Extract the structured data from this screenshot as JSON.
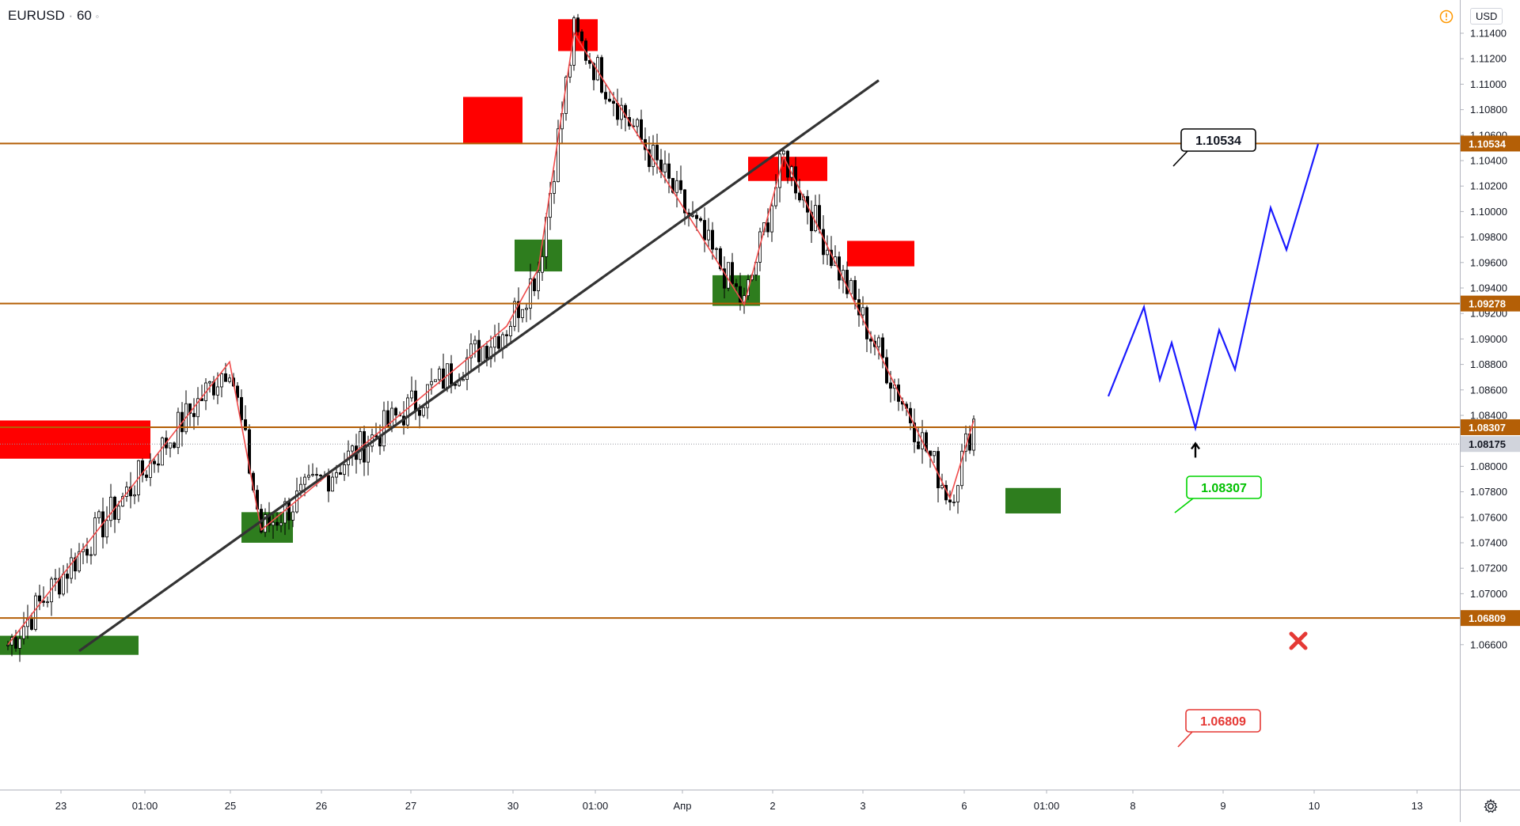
{
  "header": {
    "symbol": "EURUSD",
    "interval": "60",
    "separator": "·"
  },
  "price_axis": {
    "currency": "USD",
    "ticks": [
      "1.11400",
      "1.11200",
      "1.11000",
      "1.10800",
      "1.10600",
      "1.10400",
      "1.10200",
      "1.10000",
      "1.09800",
      "1.09600",
      "1.09400",
      "1.09200",
      "1.09000",
      "1.08800",
      "1.08600",
      "1.08400",
      "1.08200",
      "1.08000",
      "1.07800",
      "1.07600",
      "1.07400",
      "1.07200",
      "1.07000",
      "1.06800",
      "1.06600"
    ],
    "tick_values": [
      1.114,
      1.112,
      1.11,
      1.108,
      1.106,
      1.104,
      1.102,
      1.1,
      1.098,
      1.096,
      1.094,
      1.092,
      1.09,
      1.088,
      1.086,
      1.084,
      1.082,
      1.08,
      1.078,
      1.076,
      1.074,
      1.072,
      1.07,
      1.068,
      1.066
    ],
    "level_labels": [
      {
        "text": "1.10534",
        "value": 1.10534,
        "color": "#b45f06"
      },
      {
        "text": "1.09278",
        "value": 1.09278,
        "color": "#b45f06"
      },
      {
        "text": "1.08307",
        "value": 1.08307,
        "color": "#b45f06"
      },
      {
        "text": "1.08175",
        "value": 1.08175,
        "color": "#d1d4dc"
      },
      {
        "text": "1.06809",
        "value": 1.06809,
        "color": "#b45f06"
      }
    ]
  },
  "time_axis": {
    "labels": [
      {
        "text": "23",
        "x": 0
      },
      {
        "text": "01:00",
        "x": 1
      },
      {
        "text": "25",
        "x": 2
      },
      {
        "text": "26",
        "x": 3
      },
      {
        "text": "27",
        "x": 4
      },
      {
        "text": "30",
        "x": 5
      },
      {
        "text": "01:00",
        "x": 6
      },
      {
        "text": "Апр",
        "x": 7
      },
      {
        "text": "2",
        "x": 8
      },
      {
        "text": "3",
        "x": 9
      },
      {
        "text": "6",
        "x": 10
      },
      {
        "text": "01:00",
        "x": 11
      },
      {
        "text": "8",
        "x": 12
      },
      {
        "text": "9",
        "x": 13
      },
      {
        "text": "10",
        "x": 14
      },
      {
        "text": "13",
        "x": 15
      }
    ]
  },
  "callouts": [
    {
      "text": "1.10534",
      "border": "#000000",
      "color": "#131722"
    },
    {
      "text": "1.08307",
      "border": "#00d400",
      "color": "#00c000"
    },
    {
      "text": "1.06809",
      "border": "#e53935",
      "color": "#e53935"
    }
  ],
  "colors": {
    "level": "#b45f06",
    "supply": "#ff0000",
    "demand": "#2e7d1e",
    "zigzag": "#f04b4b",
    "trend": "#333333",
    "projection": "#1a1aff",
    "candle": "#000000"
  },
  "chart_data": {
    "type": "candlestick",
    "symbol": "EURUSD",
    "interval": "60",
    "ylim": [
      1.0653,
      1.1155
    ],
    "horizontal_levels": [
      1.10534,
      1.09278,
      1.08307,
      1.06809
    ],
    "last_price": 1.08175,
    "zigzag_path": [
      {
        "bar": 0,
        "price": 1.066
      },
      {
        "bar": 56,
        "price": 1.0882
      },
      {
        "bar": 64,
        "price": 1.075
      },
      {
        "bar": 126,
        "price": 1.091
      },
      {
        "bar": 134,
        "price": 1.0955
      },
      {
        "bar": 143,
        "price": 1.114
      },
      {
        "bar": 186,
        "price": 1.0927
      },
      {
        "bar": 196,
        "price": 1.1043
      },
      {
        "bar": 238,
        "price": 1.0775
      },
      {
        "bar": 244,
        "price": 1.0836
      }
    ],
    "supply_zones": [
      {
        "from_bar": -3,
        "to_bar": 36,
        "low": 1.0806,
        "high": 1.0836
      },
      {
        "from_bar": 115,
        "to_bar": 130,
        "low": 1.1054,
        "high": 1.109
      },
      {
        "from_bar": 139,
        "to_bar": 149,
        "low": 1.1126,
        "high": 1.1151
      },
      {
        "from_bar": 187,
        "to_bar": 207,
        "low": 1.1024,
        "high": 1.1043
      },
      {
        "from_bar": 212,
        "to_bar": 229,
        "low": 1.0957,
        "high": 1.0977
      }
    ],
    "demand_zones": [
      {
        "from_bar": -3,
        "to_bar": 33,
        "low": 1.0652,
        "high": 1.0667
      },
      {
        "from_bar": 59,
        "to_bar": 72,
        "low": 1.074,
        "high": 1.0764
      },
      {
        "from_bar": 128,
        "to_bar": 140,
        "low": 1.0953,
        "high": 1.0978
      },
      {
        "from_bar": 178,
        "to_bar": 190,
        "low": 1.0926,
        "high": 1.095
      },
      {
        "from_bar": 252,
        "to_bar": 266,
        "low": 1.0763,
        "high": 1.0783
      }
    ],
    "trendline": [
      {
        "bar": 18,
        "price": 1.0655
      },
      {
        "bar": 220,
        "price": 1.1103
      }
    ],
    "projection": [
      {
        "bar": 278,
        "price": 1.0855
      },
      {
        "bar": 287,
        "price": 1.0925
      },
      {
        "bar": 291,
        "price": 1.0868
      },
      {
        "bar": 294,
        "price": 1.0897
      },
      {
        "bar": 300,
        "price": 1.083
      },
      {
        "bar": 306,
        "price": 1.0907
      },
      {
        "bar": 310,
        "price": 1.0876
      },
      {
        "bar": 319,
        "price": 1.1003
      },
      {
        "bar": 323,
        "price": 1.097
      },
      {
        "bar": 331,
        "price": 1.1053
      }
    ],
    "markers": {
      "up_arrow_bar": 300,
      "up_arrow_price": 1.0818,
      "cross_bar": 326,
      "cross_price": 1.0663
    },
    "x_axis_labels": [
      "23",
      "01:00",
      "25",
      "26",
      "27",
      "30",
      "01:00",
      "Апр",
      "2",
      "3",
      "6",
      "01:00",
      "8",
      "9",
      "10",
      "13"
    ]
  }
}
